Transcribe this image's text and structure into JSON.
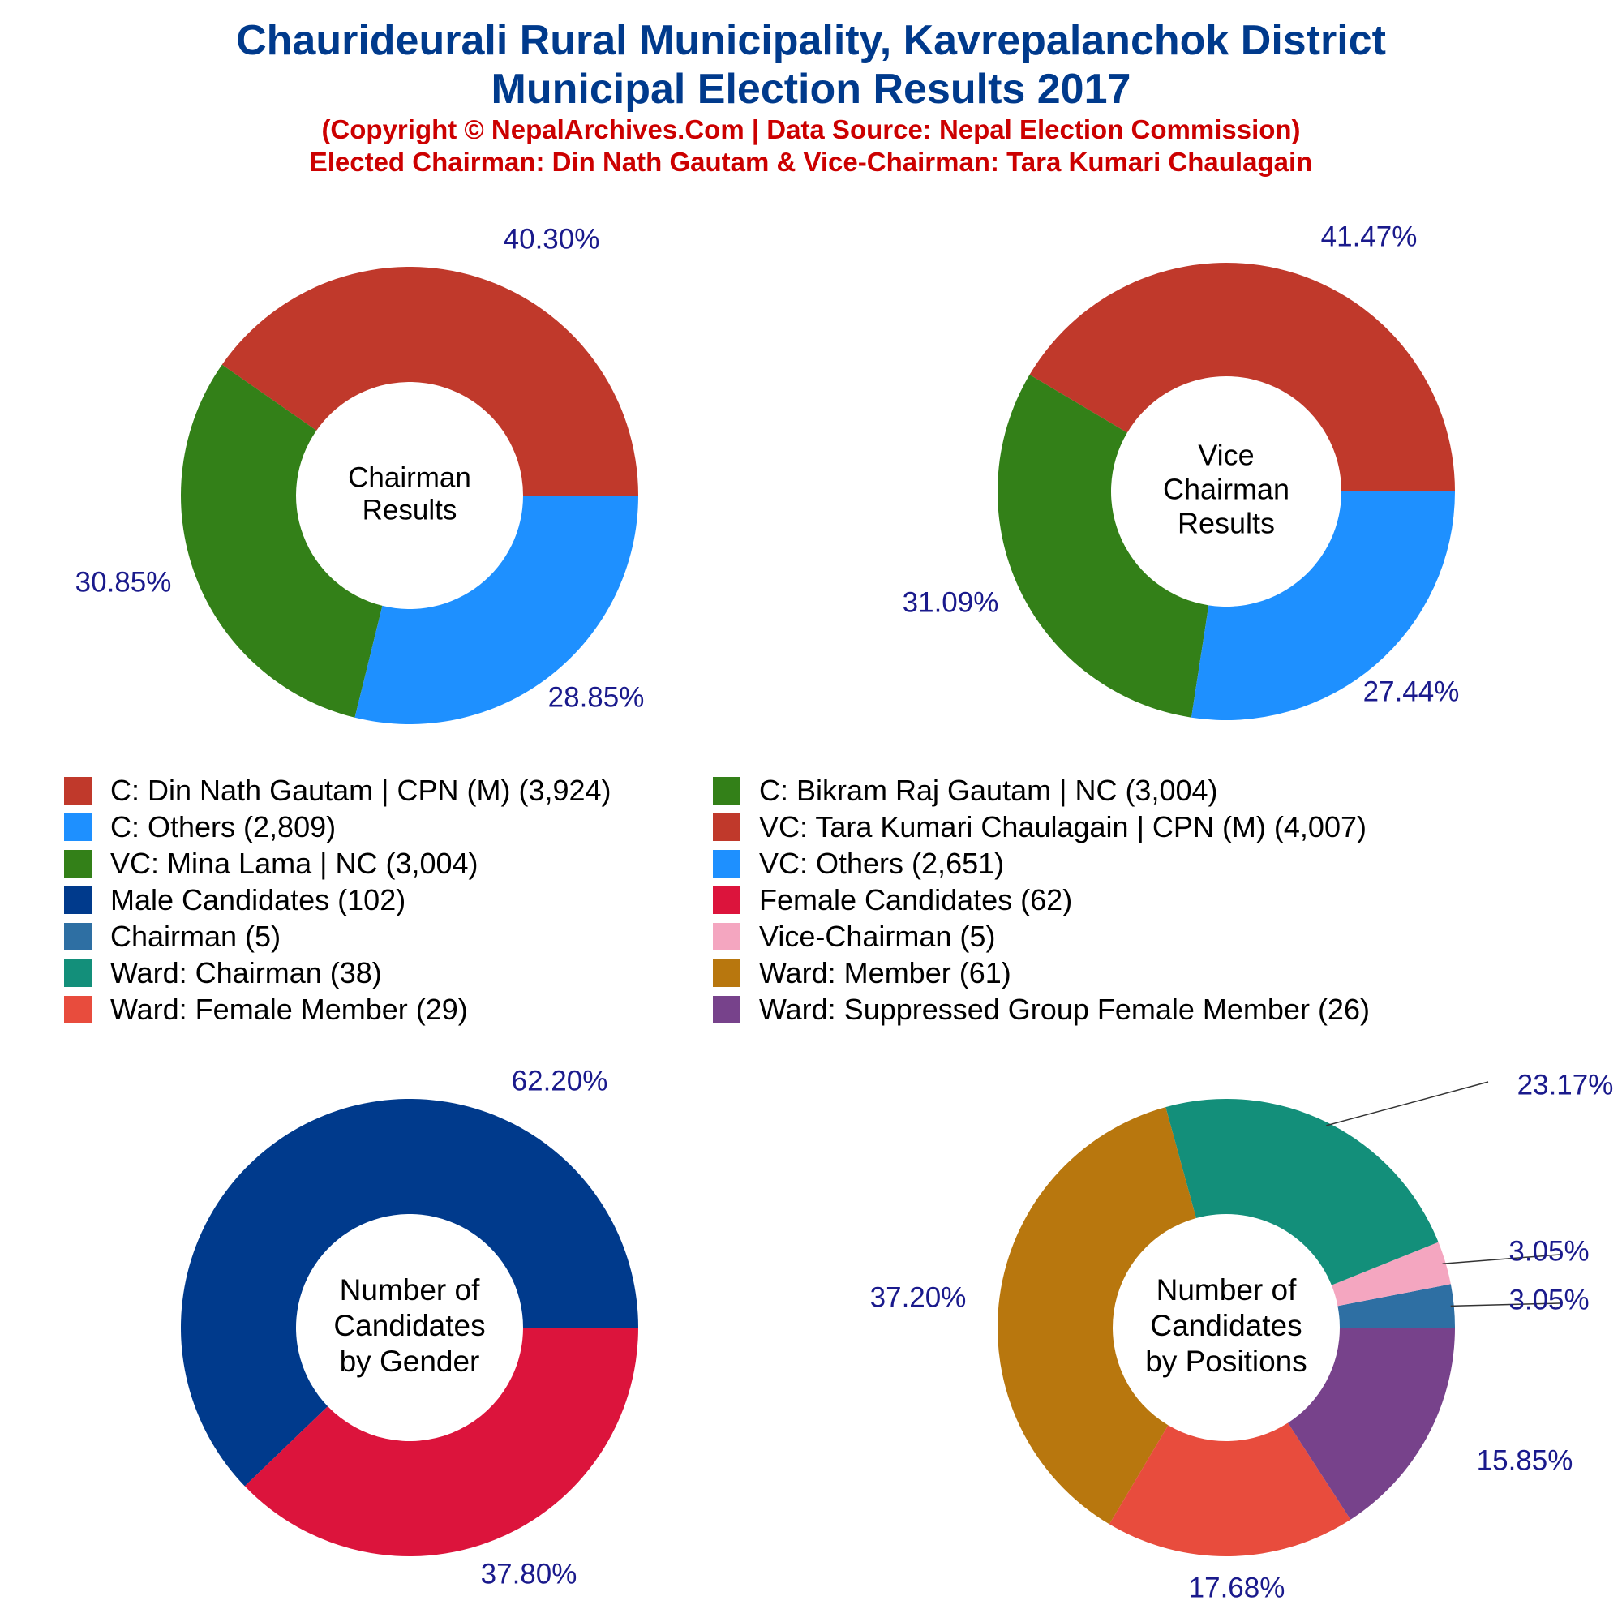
{
  "header": {
    "title_line1": "Chaurideurali Rural Municipality, Kavrepalanchok District",
    "title_line2": "Municipal Election Results 2017",
    "subtitle_line1": "(Copyright © NepalArchives.Com | Data Source: Nepal Election Commission)",
    "subtitle_line2": "Elected Chairman: Din Nath Gautam & Vice-Chairman: Tara Kumari Chaulagain"
  },
  "colors": {
    "title": "#003a8c",
    "subtitle": "#cc0000",
    "percent_label": "#1a1a8c"
  },
  "legend": [
    {
      "label": "C: Din Nath Gautam | CPN (M) (3,924)",
      "color": "#c0392b"
    },
    {
      "label": "C: Bikram Raj Gautam | NC (3,004)",
      "color": "#338018"
    },
    {
      "label": "C: Others (2,809)",
      "color": "#1e90ff"
    },
    {
      "label": "VC: Tara Kumari Chaulagain | CPN (M) (4,007)",
      "color": "#c0392b"
    },
    {
      "label": "VC: Mina Lama | NC (3,004)",
      "color": "#338018"
    },
    {
      "label": "VC: Others (2,651)",
      "color": "#1e90ff"
    },
    {
      "label": "Male Candidates (102)",
      "color": "#003a8c"
    },
    {
      "label": "Female Candidates (62)",
      "color": "#dc143c"
    },
    {
      "label": "Chairman (5)",
      "color": "#2e6fa3"
    },
    {
      "label": "Vice-Chairman (5)",
      "color": "#f4a6c0"
    },
    {
      "label": "Ward: Chairman (38)",
      "color": "#138f7a"
    },
    {
      "label": "Ward: Member (61)",
      "color": "#b8770e"
    },
    {
      "label": "Ward: Female Member (29)",
      "color": "#e84c3d"
    },
    {
      "label": "Ward: Suppressed Group Female Member (26)",
      "color": "#77428b"
    }
  ],
  "chart_data": [
    {
      "type": "pie",
      "center_label": [
        "Chairman",
        "Results"
      ],
      "slices": [
        {
          "name": "C: Din Nath Gautam | CPN (M)",
          "value": 3924,
          "label": "40.30%",
          "color": "#c0392b"
        },
        {
          "name": "C: Bikram Raj Gautam | NC",
          "value": 3004,
          "label": "30.85%",
          "color": "#338018"
        },
        {
          "name": "C: Others",
          "value": 2809,
          "label": "28.85%",
          "color": "#1e90ff"
        }
      ]
    },
    {
      "type": "pie",
      "center_label": [
        "Vice",
        "Chairman",
        "Results"
      ],
      "slices": [
        {
          "name": "VC: Tara Kumari Chaulagain | CPN (M)",
          "value": 4007,
          "label": "41.47%",
          "color": "#c0392b"
        },
        {
          "name": "VC: Mina Lama | NC",
          "value": 3004,
          "label": "31.09%",
          "color": "#338018"
        },
        {
          "name": "VC: Others",
          "value": 2651,
          "label": "27.44%",
          "color": "#1e90ff"
        }
      ]
    },
    {
      "type": "pie",
      "center_label": [
        "Number of",
        "Candidates",
        "by Gender"
      ],
      "slices": [
        {
          "name": "Male Candidates",
          "value": 102,
          "label": "62.20%",
          "color": "#003a8c"
        },
        {
          "name": "Female Candidates",
          "value": 62,
          "label": "37.80%",
          "color": "#dc143c"
        }
      ]
    },
    {
      "type": "pie",
      "center_label": [
        "Number of",
        "Candidates",
        "by Positions"
      ],
      "slices": [
        {
          "name": "Chairman",
          "value": 5,
          "label": "3.05%",
          "color": "#2e6fa3"
        },
        {
          "name": "Vice-Chairman",
          "value": 5,
          "label": "3.05%",
          "color": "#f4a6c0"
        },
        {
          "name": "Ward: Chairman",
          "value": 38,
          "label": "23.17%",
          "color": "#138f7a"
        },
        {
          "name": "Ward: Member",
          "value": 61,
          "label": "37.20%",
          "color": "#b8770e"
        },
        {
          "name": "Ward: Female Member",
          "value": 29,
          "label": "17.68%",
          "color": "#e84c3d"
        },
        {
          "name": "Ward: Suppressed Group Female Member",
          "value": 26,
          "label": "15.85%",
          "color": "#77428b"
        }
      ]
    }
  ]
}
